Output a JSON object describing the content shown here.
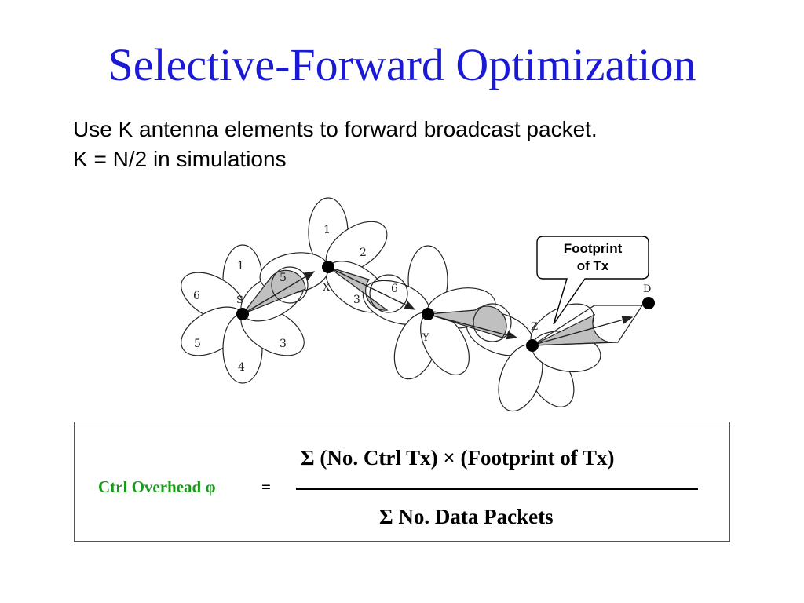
{
  "slide": {
    "title": "Selective-Forward Optimization",
    "bullets": [
      "Use K antenna elements to forward broadcast packet.",
      "K = N/2 in simulations"
    ]
  },
  "diagram": {
    "nodes": [
      "S",
      "X",
      "Y",
      "Z",
      "D"
    ],
    "petal_labels_S": [
      "1",
      "6",
      "5",
      "4",
      "3"
    ],
    "petal_labels_X": [
      "1",
      "2",
      "5",
      "3"
    ],
    "path_labels": [
      "6"
    ],
    "callout": [
      "Footprint",
      "of Tx"
    ],
    "colors": {
      "shaded_beam": "#c0c0c0",
      "petal_fill": "#ffffff",
      "stroke": "#222222"
    }
  },
  "formula": {
    "lhs": "Ctrl Overhead φ",
    "equals": "=",
    "numerator": "Σ (No. Ctrl Tx) × (Footprint of  Tx)",
    "denominator": "Σ No. Data Packets",
    "lhs_color": "#1a9a1a"
  }
}
